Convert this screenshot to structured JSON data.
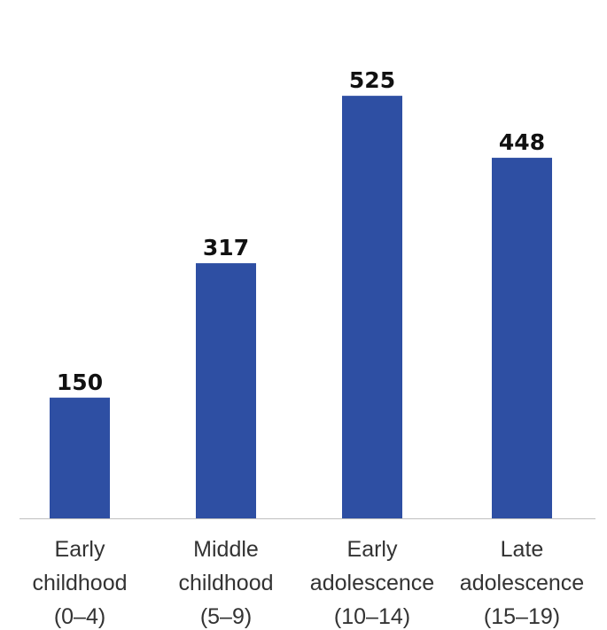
{
  "chart_data": {
    "type": "bar",
    "categories": [
      [
        "Early",
        "childhood",
        "(0–4)"
      ],
      [
        "Middle",
        "childhood",
        "(5–9)"
      ],
      [
        "Early",
        "adolescence",
        "(10–14)"
      ],
      [
        "Late",
        "adolescence",
        "(15–19)"
      ]
    ],
    "values": [
      150,
      317,
      525,
      448
    ],
    "value_labels": [
      "150",
      "317",
      "525",
      "448"
    ],
    "title": "",
    "xlabel": "",
    "ylabel": "",
    "ylim": [
      0,
      600
    ],
    "grid": false,
    "legend": "none",
    "colors": {
      "bar": "#2E4FA3",
      "baseline": "#BFBFBF",
      "label_text": "#333333",
      "value_text": "#111111"
    }
  }
}
